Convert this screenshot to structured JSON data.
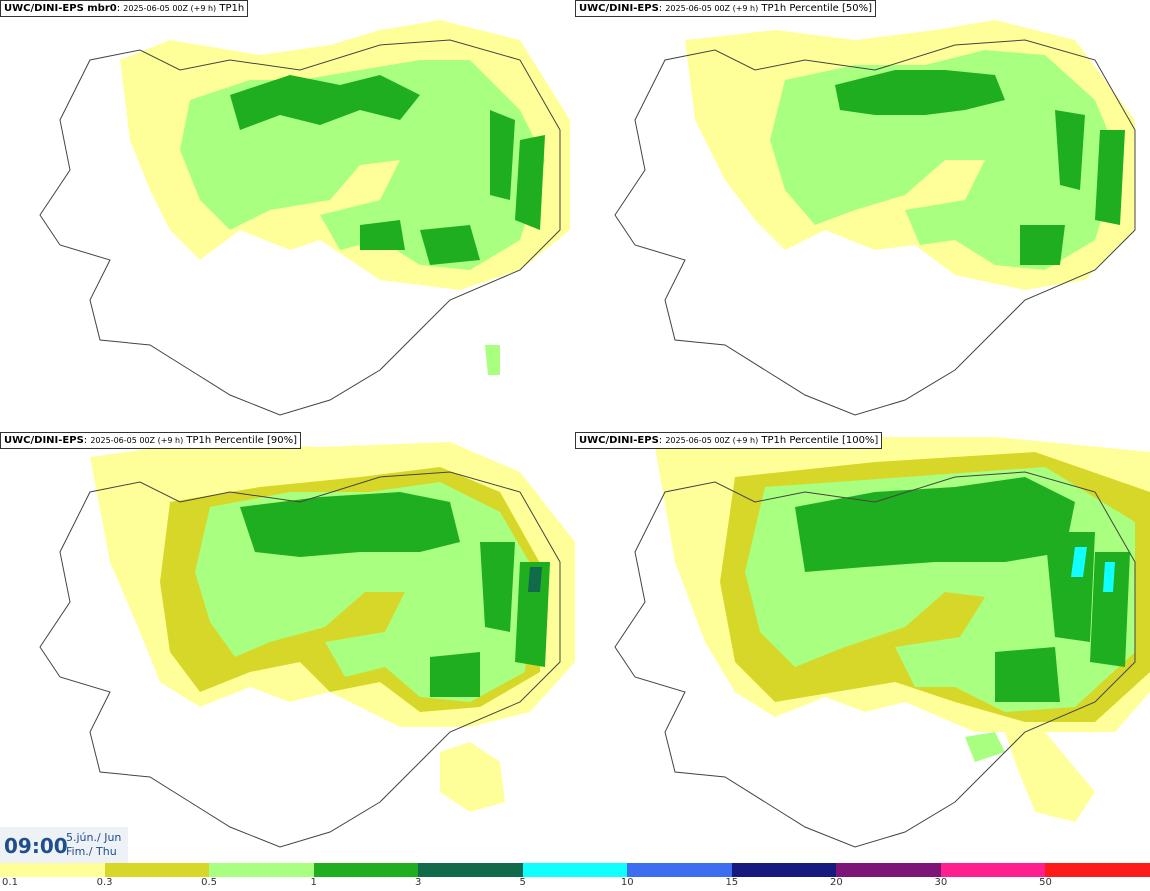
{
  "panels": [
    {
      "model": "UWC/DINI-EPS mbr0",
      "run": "2025-06-05 00Z (+9 h)",
      "field": "TP1h"
    },
    {
      "model": "UWC/DINI-EPS",
      "run": "2025-06-05 00Z (+9 h)",
      "field": "TP1h Percentile [50%]"
    },
    {
      "model": "UWC/DINI-EPS",
      "run": "2025-06-05 00Z (+9 h)",
      "field": "TP1h Percentile [90%]"
    },
    {
      "model": "UWC/DINI-EPS",
      "run": "2025-06-05 00Z (+9 h)",
      "field": "TP1h Percentile [100%]"
    }
  ],
  "valid_time": {
    "hour": "09:00",
    "date_line1": "5.jún./ Jun",
    "date_line2": "Fim./ Thu"
  },
  "legend": {
    "labels": [
      "0.1",
      "0.3",
      "0.5",
      "1",
      "3",
      "5",
      "10",
      "15",
      "20",
      "30",
      "50"
    ],
    "colors": [
      "#ffff9a",
      "#d7d72a",
      "#a8ff80",
      "#1fae1f",
      "#116a4a",
      "#11ffff",
      "#3e6ef0",
      "#17197f",
      "#7d1579",
      "#ff1f8f",
      "#ff1a1a"
    ]
  }
}
